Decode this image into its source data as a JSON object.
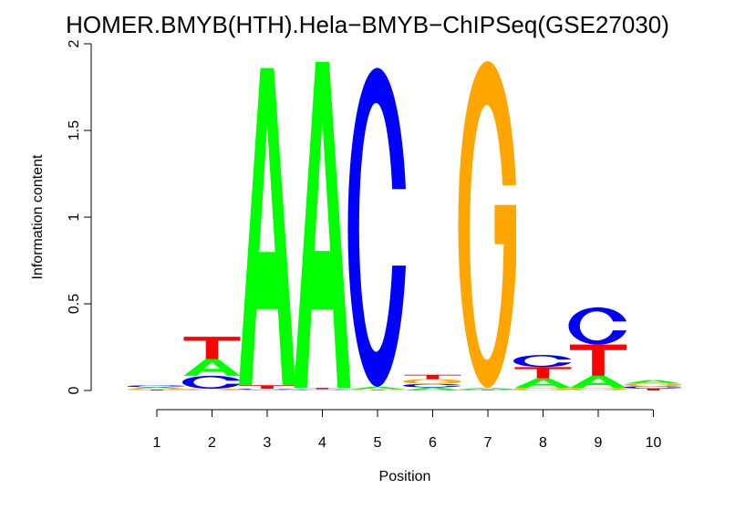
{
  "chart_data": {
    "type": "sequence-logo",
    "title": "HOMER.BMYB(HTH).Hela−BMYB−ChIPSeq(GSE27030)",
    "xlabel": "Position",
    "ylabel": "Information content",
    "ylim": [
      0,
      2
    ],
    "y_ticks": [
      "0",
      "0.5",
      "1",
      "1.5",
      "2"
    ],
    "y_tick_values": [
      0,
      0.5,
      1,
      1.5,
      2
    ],
    "x_ticks": [
      "1",
      "2",
      "3",
      "4",
      "5",
      "6",
      "7",
      "8",
      "9",
      "10"
    ],
    "colors": {
      "A": "#00ff00",
      "C": "#0000ff",
      "G": "#ffa500",
      "T": "#ff0000"
    },
    "positions": [
      {
        "pos": 1,
        "stack": [
          [
            "T",
            0.005
          ],
          [
            "G",
            0.006
          ],
          [
            "A",
            0.008
          ],
          [
            "C",
            0.011
          ]
        ]
      },
      {
        "pos": 2,
        "stack": [
          [
            "G",
            0.01
          ],
          [
            "C",
            0.075
          ],
          [
            "A",
            0.095
          ],
          [
            "T",
            0.13
          ]
        ]
      },
      {
        "pos": 3,
        "stack": [
          [
            "G",
            0.004
          ],
          [
            "C",
            0.006
          ],
          [
            "T",
            0.02
          ],
          [
            "A",
            1.83
          ]
        ]
      },
      {
        "pos": 4,
        "stack": [
          [
            "G",
            0.003
          ],
          [
            "C",
            0.004
          ],
          [
            "T",
            0.008
          ],
          [
            "A",
            1.88
          ]
        ]
      },
      {
        "pos": 5,
        "stack": [
          [
            "T",
            0.003
          ],
          [
            "G",
            0.004
          ],
          [
            "A",
            0.014
          ],
          [
            "C",
            1.84
          ]
        ]
      },
      {
        "pos": 6,
        "stack": [
          [
            "A",
            0.018
          ],
          [
            "C",
            0.02
          ],
          [
            "G",
            0.028
          ],
          [
            "T",
            0.025
          ]
        ]
      },
      {
        "pos": 7,
        "stack": [
          [
            "T",
            0.003
          ],
          [
            "C",
            0.004
          ],
          [
            "A",
            0.008
          ],
          [
            "G",
            1.885
          ]
        ]
      },
      {
        "pos": 8,
        "stack": [
          [
            "G",
            0.015
          ],
          [
            "A",
            0.055
          ],
          [
            "T",
            0.065
          ],
          [
            "C",
            0.07
          ]
        ]
      },
      {
        "pos": 9,
        "stack": [
          [
            "G",
            0.015
          ],
          [
            "A",
            0.07
          ],
          [
            "T",
            0.18
          ],
          [
            "C",
            0.215
          ]
        ]
      },
      {
        "pos": 10,
        "stack": [
          [
            "T",
            0.012
          ],
          [
            "C",
            0.013
          ],
          [
            "G",
            0.015
          ],
          [
            "A",
            0.02
          ]
        ]
      }
    ]
  }
}
